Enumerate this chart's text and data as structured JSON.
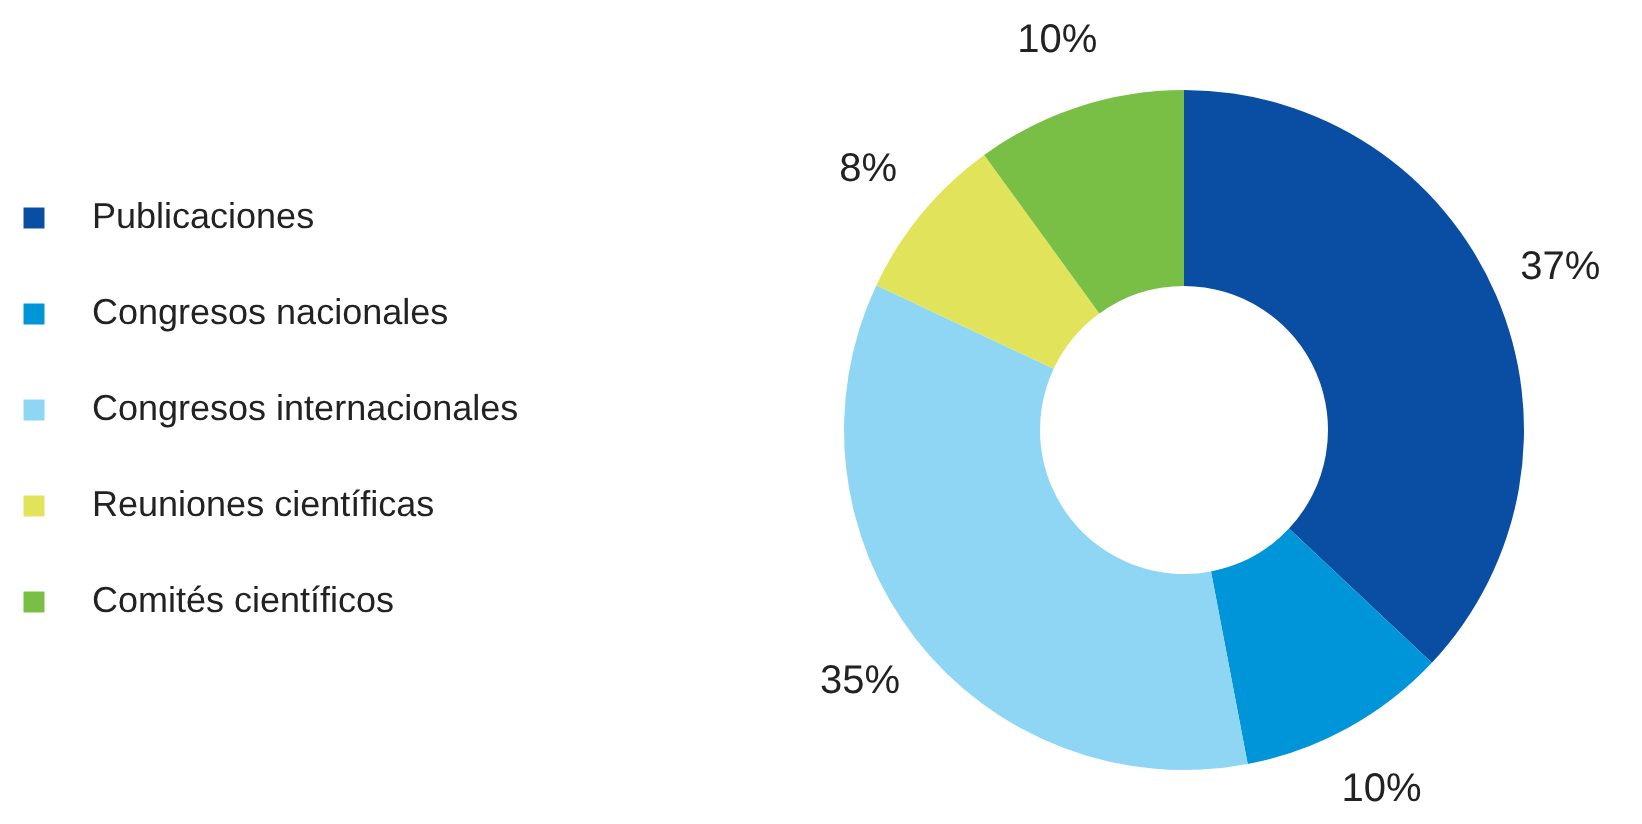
{
  "chart_data": {
    "type": "donut",
    "categories": [
      "Publicaciones",
      "Congresos nacionales",
      "Congresos internacionales",
      "Reuniones científicas",
      "Comités científicos"
    ],
    "values": [
      37,
      10,
      35,
      8,
      10
    ],
    "colors": [
      "#0a4ea3",
      "#0095d9",
      "#8fd6f5",
      "#e1e45a",
      "#7abf45"
    ],
    "value_labels": [
      "37%",
      "10%",
      "35%",
      "8%",
      "10%"
    ],
    "legend": "left"
  }
}
